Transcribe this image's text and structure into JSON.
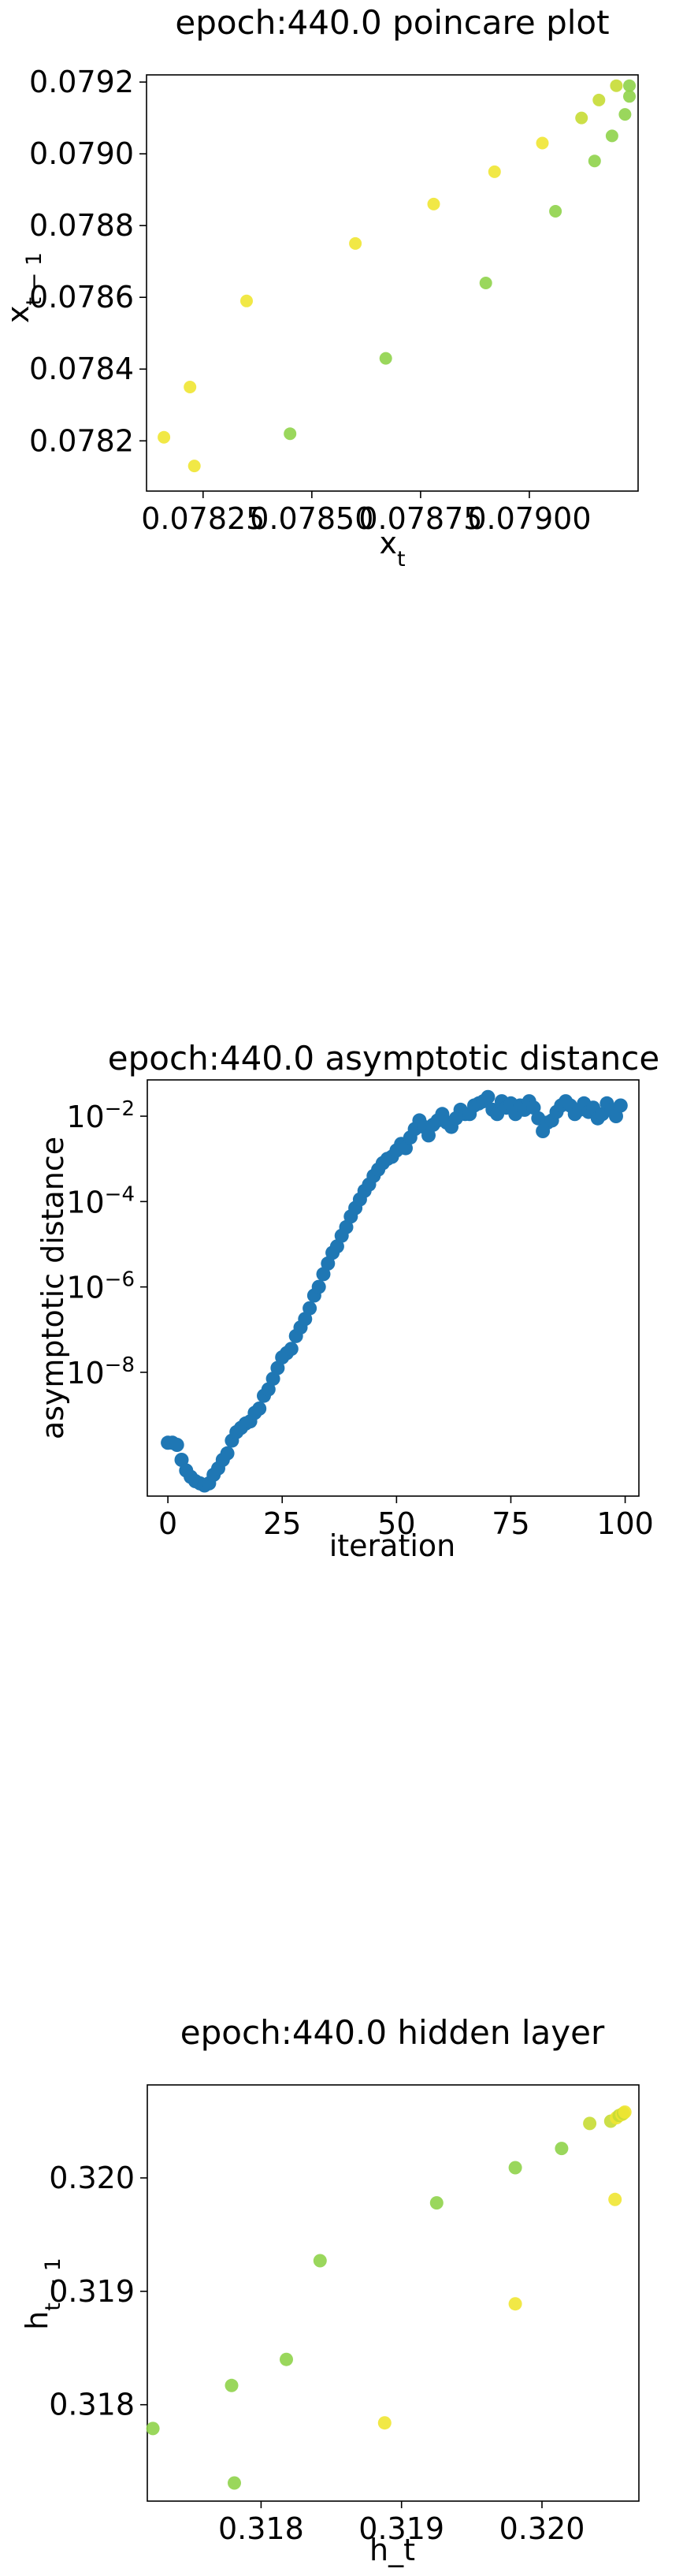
{
  "colors": {
    "point_blue": "#1f77b4",
    "yellow": "#f0e532",
    "lime": "#c6dc34",
    "green": "#8fd34a"
  },
  "chart_data": [
    {
      "type": "scatter",
      "title": "epoch:440.0 poincare plot",
      "xlabel": "x_t",
      "ylabel": "x_{t-1}",
      "xlim": [
        0.07812,
        0.07925
      ],
      "ylim": [
        0.78206,
        0.07922
      ],
      "xticks": [
        0.07825,
        0.0785,
        0.07875,
        0.079
      ],
      "xtick_labels": [
        "0.07825",
        "0.07850",
        "0.07875",
        "0.07900"
      ],
      "yticks": [
        0.0782,
        0.0784,
        0.0786,
        0.0788,
        0.079,
        0.0792
      ],
      "ytick_labels": [
        "0.0782",
        "0.0784",
        "0.0786",
        "0.0788",
        "0.0790",
        "0.0792"
      ],
      "points": [
        {
          "x": 0.07816,
          "y": 0.07821,
          "color": "yellow"
        },
        {
          "x": 0.07822,
          "y": 0.07835,
          "color": "yellow"
        },
        {
          "x": 0.07823,
          "y": 0.07813,
          "color": "yellow"
        },
        {
          "x": 0.07835,
          "y": 0.07859,
          "color": "yellow"
        },
        {
          "x": 0.07845,
          "y": 0.07822,
          "color": "green"
        },
        {
          "x": 0.0786,
          "y": 0.07875,
          "color": "yellow"
        },
        {
          "x": 0.07867,
          "y": 0.07843,
          "color": "green"
        },
        {
          "x": 0.07878,
          "y": 0.07886,
          "color": "yellow"
        },
        {
          "x": 0.0789,
          "y": 0.07864,
          "color": "green"
        },
        {
          "x": 0.07892,
          "y": 0.07895,
          "color": "yellow"
        },
        {
          "x": 0.07903,
          "y": 0.07903,
          "color": "yellow"
        },
        {
          "x": 0.07906,
          "y": 0.07884,
          "color": "green"
        },
        {
          "x": 0.07912,
          "y": 0.0791,
          "color": "lime"
        },
        {
          "x": 0.07915,
          "y": 0.07898,
          "color": "green"
        },
        {
          "x": 0.07916,
          "y": 0.07915,
          "color": "lime"
        },
        {
          "x": 0.07919,
          "y": 0.07905,
          "color": "green"
        },
        {
          "x": 0.0792,
          "y": 0.07919,
          "color": "lime"
        },
        {
          "x": 0.07922,
          "y": 0.07911,
          "color": "green"
        },
        {
          "x": 0.07923,
          "y": 0.07919,
          "color": "green"
        },
        {
          "x": 0.07923,
          "y": 0.07916,
          "color": "green"
        }
      ]
    },
    {
      "type": "scatter",
      "title": "epoch:440.0 asymptotic distance",
      "xlabel": "iteration",
      "ylabel": "asymptotic distance",
      "yscale": "log",
      "xlim": [
        -4.5,
        103
      ],
      "ylim_log10": [
        -10.9,
        -1.15
      ],
      "xticks": [
        0,
        25,
        50,
        75,
        100
      ],
      "xtick_labels": [
        "0",
        "25",
        "50",
        "75",
        "100"
      ],
      "yticks_log10": [
        -8,
        -6,
        -4,
        -2
      ],
      "ytick_bases": [
        "10",
        "10",
        "10",
        "10"
      ],
      "ytick_exponents": [
        "−8",
        "−6",
        "−4",
        "−2"
      ],
      "log10_values": [
        -9.65,
        -9.65,
        -9.7,
        -10.05,
        -10.3,
        -10.45,
        -10.55,
        -10.6,
        -10.65,
        -10.6,
        -10.4,
        -10.25,
        -10.05,
        -9.9,
        -9.6,
        -9.4,
        -9.3,
        -9.2,
        -9.15,
        -8.95,
        -8.85,
        -8.55,
        -8.4,
        -8.15,
        -7.9,
        -7.65,
        -7.55,
        -7.45,
        -7.15,
        -6.95,
        -6.75,
        -6.5,
        -6.2,
        -6.0,
        -5.7,
        -5.45,
        -5.2,
        -5.05,
        -4.8,
        -4.6,
        -4.35,
        -4.15,
        -3.95,
        -3.75,
        -3.6,
        -3.4,
        -3.25,
        -3.1,
        -3.0,
        -2.95,
        -2.8,
        -2.65,
        -2.75,
        -2.5,
        -2.3,
        -2.1,
        -2.25,
        -2.45,
        -2.2,
        -2.1,
        -1.95,
        -2.15,
        -2.25,
        -2.05,
        -1.85,
        -1.95,
        -1.95,
        -1.75,
        -1.7,
        -1.65,
        -1.55,
        -1.85,
        -1.95,
        -1.65,
        -1.8,
        -1.7,
        -1.95,
        -1.75,
        -1.85,
        -1.65,
        -1.8,
        -2.05,
        -2.35,
        -2.15,
        -2.1,
        -1.9,
        -1.75,
        -1.65,
        -1.75,
        -1.95,
        -1.85,
        -1.7,
        -1.9,
        -1.8,
        -2.05,
        -1.95,
        -1.7,
        -1.85,
        -2.0,
        -1.75
      ]
    },
    {
      "type": "scatter",
      "title": "epoch:440.0 hidden layer",
      "xlabel": "h_t",
      "ylabel": "h_{t-1}",
      "xlim": [
        0.31719,
        0.32069
      ],
      "ylim": [
        0.31715,
        0.32082
      ],
      "xticks": [
        0.318,
        0.319,
        0.32
      ],
      "xtick_labels": [
        "0.318",
        "0.319",
        "0.320"
      ],
      "yticks": [
        0.318,
        0.319,
        0.32
      ],
      "ytick_labels": [
        "0.318",
        "0.319",
        "0.320"
      ],
      "points": [
        {
          "x": 0.31723,
          "y": 0.31779,
          "color": "green"
        },
        {
          "x": 0.31779,
          "y": 0.31817,
          "color": "green"
        },
        {
          "x": 0.31781,
          "y": 0.31731,
          "color": "green"
        },
        {
          "x": 0.31818,
          "y": 0.3184,
          "color": "green"
        },
        {
          "x": 0.31842,
          "y": 0.31927,
          "color": "green"
        },
        {
          "x": 0.31888,
          "y": 0.31784,
          "color": "yellow"
        },
        {
          "x": 0.31925,
          "y": 0.31978,
          "color": "green"
        },
        {
          "x": 0.31981,
          "y": 0.31889,
          "color": "yellow"
        },
        {
          "x": 0.31981,
          "y": 0.32009,
          "color": "green"
        },
        {
          "x": 0.32014,
          "y": 0.32026,
          "color": "green"
        },
        {
          "x": 0.32034,
          "y": 0.32048,
          "color": "lime"
        },
        {
          "x": 0.32052,
          "y": 0.31981,
          "color": "yellow"
        },
        {
          "x": 0.32049,
          "y": 0.3205,
          "color": "lime"
        },
        {
          "x": 0.32053,
          "y": 0.32053,
          "color": "yellow"
        },
        {
          "x": 0.32055,
          "y": 0.32055,
          "color": "lime"
        },
        {
          "x": 0.32057,
          "y": 0.32056,
          "color": "yellow"
        },
        {
          "x": 0.32058,
          "y": 0.32057,
          "color": "lime"
        },
        {
          "x": 0.32059,
          "y": 0.32058,
          "color": "yellow"
        }
      ]
    }
  ]
}
